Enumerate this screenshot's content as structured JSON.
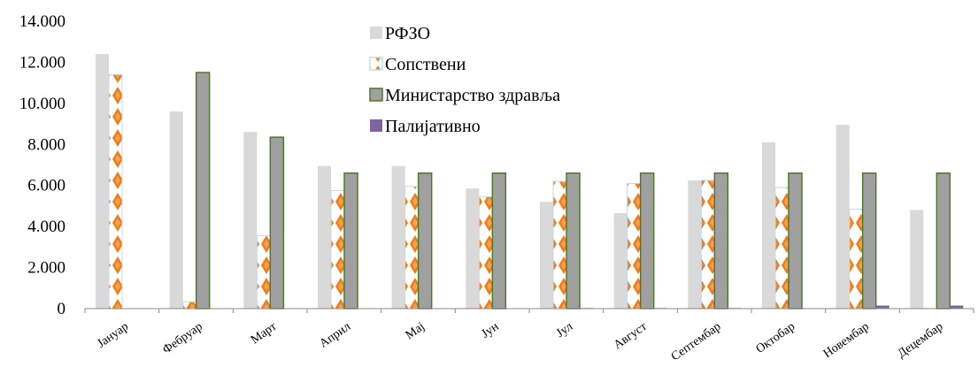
{
  "chart_data": {
    "type": "bar",
    "categories": [
      "Јануар",
      "Фебруар",
      "Март",
      "Април",
      "Мај",
      "Јун",
      "Јул",
      "Август",
      "Септембар",
      "Октобар",
      "Новембар",
      "Децембар"
    ],
    "series": [
      {
        "name": "РФЗО",
        "color": "#d9d9d9",
        "pattern": "solid",
        "values": [
          12400,
          9600,
          8600,
          6950,
          6950,
          5850,
          5200,
          4650,
          6250,
          8100,
          8950,
          4800
        ]
      },
      {
        "name": "Сопствени",
        "color": "#f4a460",
        "pattern": "orange-diamond",
        "values": [
          11400,
          330,
          3550,
          5750,
          5950,
          5450,
          6200,
          6100,
          6250,
          5900,
          4850,
          0
        ]
      },
      {
        "name": "Министарство здравља",
        "color": "#a0a0a0",
        "stroke": "#4f7a28",
        "pattern": "solid",
        "values": [
          0,
          11500,
          8350,
          6600,
          6600,
          6600,
          6600,
          6600,
          6600,
          6600,
          6600,
          6600
        ]
      },
      {
        "name": "Палијативно",
        "color": "#8064a2",
        "pattern": "solid",
        "values": [
          0,
          0,
          0,
          0,
          0,
          0,
          30,
          30,
          30,
          0,
          150,
          150
        ]
      }
    ],
    "yticks": [
      "0",
      "2.000",
      "4.000",
      "6.000",
      "8.000",
      "10.000",
      "12.000",
      "14.000"
    ],
    "ylim": [
      0,
      14000
    ],
    "grid": false,
    "legend_placement": "top-center"
  }
}
